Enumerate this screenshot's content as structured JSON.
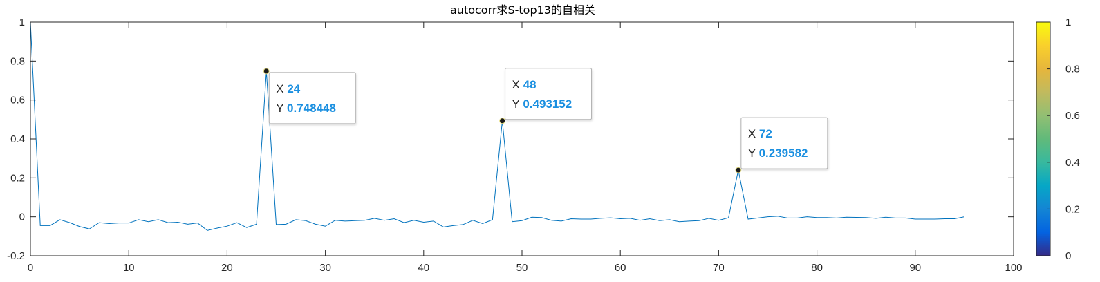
{
  "chart_data": {
    "type": "line",
    "title": "autocorr求S-top13的自相关",
    "xlabel": "",
    "ylabel": "",
    "xlim": [
      0,
      100
    ],
    "ylim": [
      -0.2,
      1
    ],
    "x_ticks": [
      0,
      10,
      20,
      30,
      40,
      50,
      60,
      70,
      80,
      90,
      100
    ],
    "y_ticks": [
      -0.2,
      0,
      0.2,
      0.4,
      0.6,
      0.8,
      1
    ],
    "x_tick_labels": [
      "0",
      "10",
      "20",
      "30",
      "40",
      "50",
      "60",
      "70",
      "80",
      "90",
      "100"
    ],
    "y_tick_labels": [
      "-0.2",
      "0",
      "0.2",
      "0.4",
      "0.6",
      "0.8",
      "1"
    ],
    "grid": false,
    "series": [
      {
        "color": "#0072BD",
        "x": [
          0,
          1,
          2,
          3,
          4,
          5,
          6,
          7,
          8,
          9,
          10,
          11,
          12,
          13,
          14,
          15,
          16,
          17,
          18,
          19,
          20,
          21,
          22,
          23,
          24,
          25,
          26,
          27,
          28,
          29,
          30,
          31,
          32,
          33,
          34,
          35,
          36,
          37,
          38,
          39,
          40,
          41,
          42,
          43,
          44,
          45,
          46,
          47,
          48,
          49,
          50,
          51,
          52,
          53,
          54,
          55,
          56,
          57,
          58,
          59,
          60,
          61,
          62,
          63,
          64,
          65,
          66,
          67,
          68,
          69,
          70,
          71,
          72,
          73,
          74,
          75,
          76,
          77,
          78,
          79,
          80,
          81,
          82,
          83,
          84,
          85,
          86,
          87,
          88,
          89,
          90,
          91,
          92,
          93,
          94,
          95
        ],
        "y": [
          1,
          -0.045,
          -0.045,
          -0.015,
          -0.03,
          -0.05,
          -0.062,
          -0.03,
          -0.035,
          -0.032,
          -0.032,
          -0.015,
          -0.025,
          -0.015,
          -0.03,
          -0.028,
          -0.038,
          -0.032,
          -0.07,
          -0.058,
          -0.048,
          -0.03,
          -0.055,
          -0.038,
          0.748448,
          -0.04,
          -0.038,
          -0.015,
          -0.02,
          -0.038,
          -0.048,
          -0.018,
          -0.022,
          -0.02,
          -0.018,
          -0.008,
          -0.018,
          -0.01,
          -0.03,
          -0.018,
          -0.028,
          -0.022,
          -0.052,
          -0.045,
          -0.04,
          -0.018,
          -0.035,
          -0.015,
          0.493152,
          -0.025,
          -0.02,
          -0.002,
          -0.004,
          -0.018,
          -0.022,
          -0.01,
          -0.012,
          -0.012,
          -0.008,
          -0.005,
          -0.01,
          -0.008,
          -0.018,
          -0.01,
          -0.02,
          -0.015,
          -0.025,
          -0.022,
          -0.02,
          -0.008,
          -0.018,
          -0.005,
          0.239582,
          -0.012,
          -0.006,
          0.0,
          0.003,
          -0.006,
          -0.006,
          0.0,
          -0.004,
          -0.004,
          -0.006,
          -0.002,
          -0.003,
          -0.004,
          -0.008,
          -0.002,
          -0.006,
          -0.006,
          -0.012,
          -0.012,
          -0.012,
          -0.01,
          -0.01,
          0.0
        ]
      }
    ],
    "datatips": [
      {
        "x_label": "X",
        "y_label": "Y",
        "x": 24,
        "y": 0.748448,
        "x_text": "24",
        "y_text": "0.748448"
      },
      {
        "x_label": "X",
        "y_label": "Y",
        "x": 48,
        "y": 0.493152,
        "x_text": "48",
        "y_text": "0.493152"
      },
      {
        "x_label": "X",
        "y_label": "Y",
        "x": 72,
        "y": 0.239582,
        "x_text": "72",
        "y_text": "0.239582"
      }
    ],
    "colorbar": {
      "colormap": "parula",
      "range": [
        0,
        1
      ],
      "ticks": [
        0,
        0.2,
        0.4,
        0.6,
        0.8,
        1
      ],
      "tick_labels": [
        "0",
        "0.2",
        "0.4",
        "0.6",
        "0.8",
        "1"
      ]
    }
  }
}
